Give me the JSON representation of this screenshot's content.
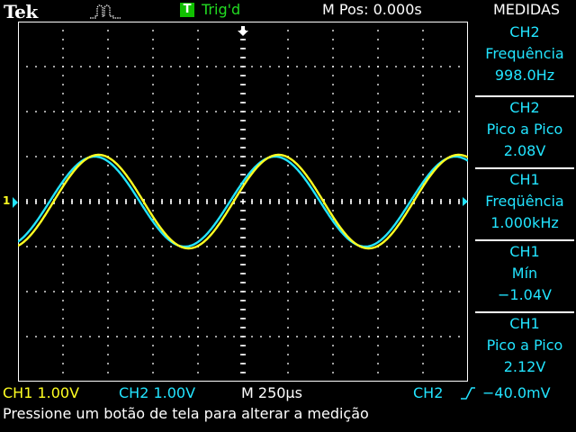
{
  "header": {
    "brand": "Tek",
    "trigger_badge": "T",
    "trigger_status": "Trig'd",
    "m_pos": "M Pos: 0.000s",
    "menu_title": "MEDIDAS",
    "acquire_icon": "pulse-acquire-icon"
  },
  "measurements": [
    {
      "channel": "CH2",
      "label": "Frequência",
      "value": "998.0Hz"
    },
    {
      "channel": "CH2",
      "label": "Pico a Pico",
      "value": "2.08V"
    },
    {
      "channel": "CH1",
      "label": "Freqüência",
      "value": "1.000kHz"
    },
    {
      "channel": "CH1",
      "label": "Mín",
      "value": "−1.04V"
    },
    {
      "channel": "CH1",
      "label": "Pico a Pico",
      "value": "2.12V"
    }
  ],
  "status": {
    "ch1_scale": "CH1  1.00V",
    "ch2_scale": "CH2  1.00V",
    "timebase": "M 250µs",
    "trigger_source": "CH2",
    "trigger_slope_icon": "rising-edge-icon",
    "trigger_level": "−40.0mV"
  },
  "message": "Pressione um botão de tela para alterar a medição",
  "waveforms": {
    "ch1_color": "#ffff22",
    "ch2_color": "#22e4ff",
    "grid_color": "#ffffff",
    "ch1_marker": "1",
    "divisions_x": 10,
    "divisions_y": 8,
    "volts_per_div": 1.0,
    "time_per_div_us": 250,
    "ch1": {
      "amplitude_v": 1.04,
      "frequency_hz": 1000,
      "phase_deg": -8
    },
    "ch2": {
      "amplitude_v": 1.0,
      "frequency_hz": 998,
      "phase_deg": 0
    }
  }
}
